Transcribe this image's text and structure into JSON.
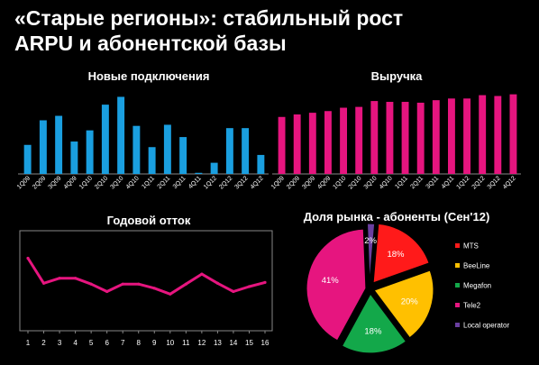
{
  "slide": {
    "title_line1": "«Старые регионы»: стабильный рост",
    "title_line2": "ARPU и абонентской базы"
  },
  "chart_data": [
    {
      "type": "bar",
      "title": "Новые подключения",
      "categories": [
        "1Q09",
        "2Q09",
        "3Q09",
        "4Q09",
        "1Q10",
        "2Q10",
        "3Q10",
        "4Q10",
        "1Q11",
        "2Q11",
        "3Q11",
        "4Q11",
        "1Q12",
        "2Q12",
        "3Q12",
        "4Q12"
      ],
      "values": [
        26,
        48,
        52,
        29,
        39,
        62,
        69,
        43,
        24,
        44,
        33,
        1,
        10,
        41,
        41,
        17
      ],
      "ylim": [
        0,
        75
      ],
      "color": "#1a9fe0"
    },
    {
      "type": "bar",
      "title": "Выручка",
      "categories": [
        "1Q09",
        "2Q09",
        "3Q09",
        "4Q09",
        "1Q10",
        "2Q10",
        "3Q10",
        "4Q10",
        "1Q11",
        "2Q11",
        "3Q11",
        "4Q11",
        "1Q12",
        "2Q12",
        "3Q12",
        "4Q12"
      ],
      "values": [
        68,
        71,
        73,
        75,
        79,
        80,
        87,
        86,
        86,
        85,
        88,
        90,
        90,
        94,
        93,
        95
      ],
      "ylim": [
        0,
        100
      ],
      "color": "#e6157f"
    },
    {
      "type": "line",
      "title": "Годовой отток",
      "x": [
        "1",
        "2",
        "3",
        "4",
        "5",
        "6",
        "7",
        "8",
        "9",
        "10",
        "11",
        "12",
        "13",
        "14",
        "15",
        "16"
      ],
      "values": [
        87,
        57,
        63,
        63,
        56,
        47,
        56,
        56,
        51,
        44,
        56,
        68,
        57,
        47,
        53,
        58
      ],
      "ylim": [
        0,
        120
      ],
      "color": "#e6157f",
      "grid": false
    },
    {
      "type": "pie",
      "title": "Доля рынка - абоненты (Сен'12)",
      "slices": [
        {
          "label": "MTS",
          "value": 18,
          "display": "18%",
          "color": "#ff1a1a"
        },
        {
          "label": "BeeLine",
          "value": 20,
          "display": "20%",
          "color": "#ffc000"
        },
        {
          "label": "Megafon",
          "value": 18,
          "display": "18%",
          "color": "#13a84a"
        },
        {
          "label": "Tele2",
          "value": 41,
          "display": "41%",
          "color": "#e6157f"
        },
        {
          "label": "Local operator",
          "value": 2,
          "display": "2%",
          "color": "#6a3fa0"
        }
      ],
      "legend_position": "right"
    }
  ]
}
